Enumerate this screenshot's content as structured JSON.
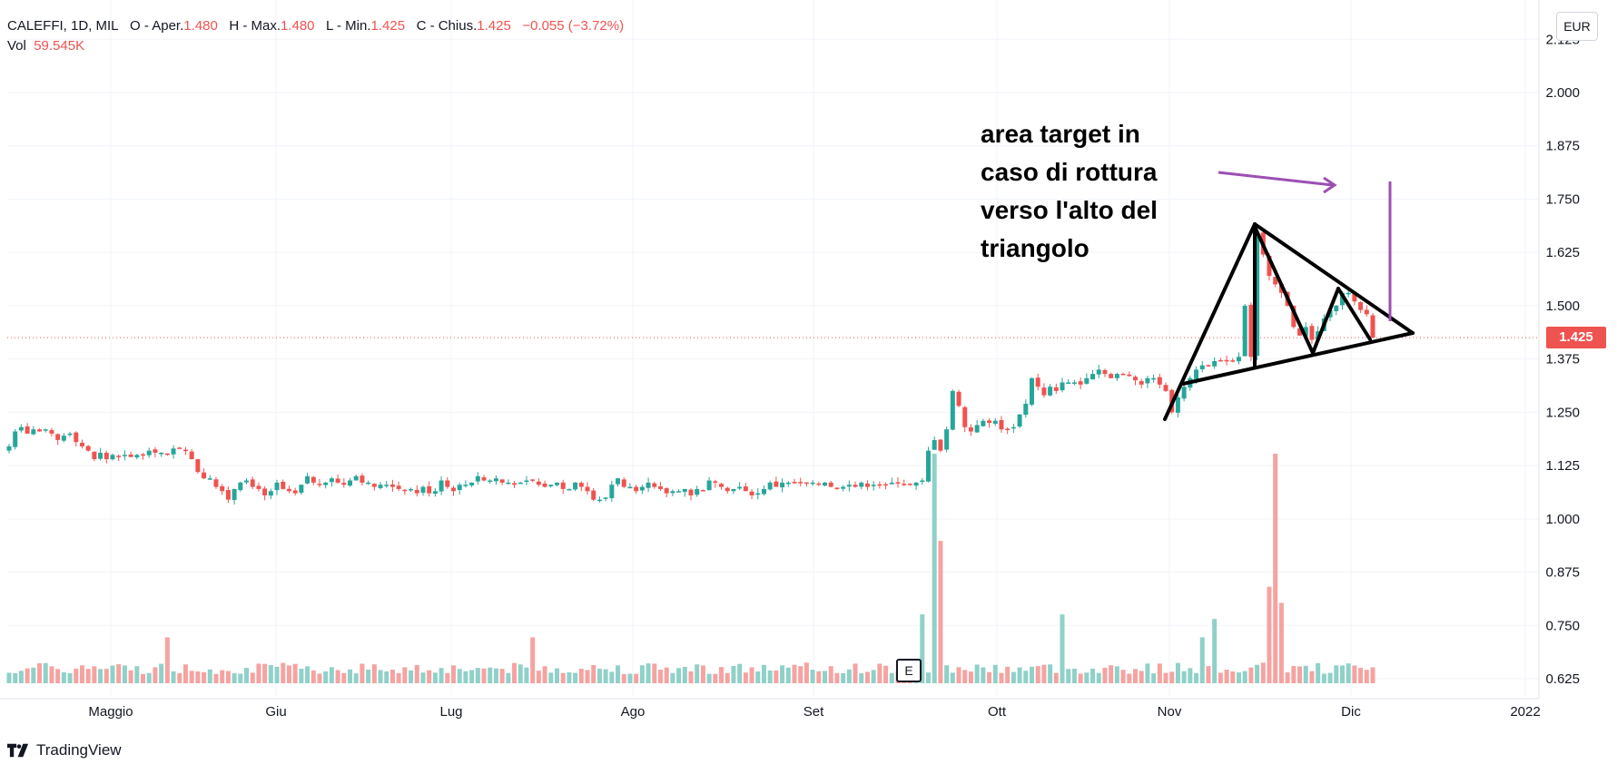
{
  "header": {
    "symbol": "CALEFFI, 1D, MIL",
    "o_label": "O - Aper.",
    "o_value": "1.480",
    "h_label": "H - Max.",
    "h_value": "1.480",
    "l_label": "L - Min.",
    "l_value": "1.425",
    "c_label": "C - Chius.",
    "c_value": "1.425",
    "change": "−0.055 (−3.72%)",
    "vol_label": "Vol",
    "vol_value": "59.545K"
  },
  "currency": "EUR",
  "last_price_label": "1.425",
  "earnings_marker": "E",
  "annotation": [
    "area target in",
    "caso di rottura",
    "verso l'alto del",
    "triangolo"
  ],
  "brand": "TradingView",
  "colors": {
    "up": "#26a69a",
    "down": "#ef5350",
    "vol_up": "#8fd1c8",
    "vol_down": "#f5a3a1",
    "grid": "#f0f3fa",
    "drawing": "#000000",
    "target": "#9c4fb3"
  },
  "chart_data": {
    "type": "candlestick",
    "title": "CALEFFI, 1D, MIL",
    "ylim": [
      0.6,
      2.125
    ],
    "y_ticks": [
      "0.625",
      "0.750",
      "0.875",
      "1.000",
      "1.125",
      "1.250",
      "1.375",
      "1.500",
      "1.625",
      "1.750",
      "1.875",
      "2.000",
      "2.125"
    ],
    "x_ticks": [
      "Maggio",
      "Giu",
      "Lug",
      "Ago",
      "Set",
      "Ott",
      "Nov",
      "Dic",
      "2022"
    ],
    "last_price": 1.425,
    "grid": true,
    "series_close": [
      1.17,
      1.205,
      1.215,
      1.2,
      1.21,
      1.205,
      1.21,
      1.2,
      1.185,
      1.195,
      1.2,
      1.18,
      1.17,
      1.16,
      1.14,
      1.155,
      1.14,
      1.15,
      1.145,
      1.15,
      1.145,
      1.15,
      1.15,
      1.16,
      1.155,
      1.155,
      1.15,
      1.165,
      1.165,
      1.16,
      1.14,
      1.11,
      1.095,
      1.095,
      1.075,
      1.065,
      1.045,
      1.07,
      1.085,
      1.09,
      1.075,
      1.07,
      1.055,
      1.065,
      1.085,
      1.07,
      1.065,
      1.06,
      1.08,
      1.1,
      1.085,
      1.08,
      1.085,
      1.095,
      1.085,
      1.08,
      1.09,
      1.1,
      1.085,
      1.085,
      1.075,
      1.08,
      1.08,
      1.075,
      1.07,
      1.065,
      1.07,
      1.06,
      1.075,
      1.06,
      1.065,
      1.09,
      1.075,
      1.065,
      1.08,
      1.08,
      1.085,
      1.1,
      1.09,
      1.09,
      1.095,
      1.085,
      1.085,
      1.08,
      1.085,
      1.09,
      1.09,
      1.08,
      1.075,
      1.08,
      1.085,
      1.07,
      1.07,
      1.085,
      1.075,
      1.065,
      1.045,
      1.045,
      1.05,
      1.08,
      1.095,
      1.075,
      1.075,
      1.065,
      1.075,
      1.085,
      1.075,
      1.07,
      1.06,
      1.065,
      1.065,
      1.07,
      1.055,
      1.07,
      1.065,
      1.09,
      1.085,
      1.075,
      1.065,
      1.07,
      1.075,
      1.065,
      1.055,
      1.06,
      1.07,
      1.085,
      1.075,
      1.085,
      1.085,
      1.085,
      1.085,
      1.085,
      1.085,
      1.08,
      1.085,
      1.075,
      1.07,
      1.075,
      1.08,
      1.075,
      1.085,
      1.075,
      1.08,
      1.08,
      1.08,
      1.085,
      1.085,
      1.08,
      1.08,
      1.085,
      1.09,
      1.16,
      1.185,
      1.16,
      1.21,
      1.3,
      1.265,
      1.215,
      1.205,
      1.22,
      1.23,
      1.225,
      1.23,
      1.21,
      1.21,
      1.215,
      1.245,
      1.27,
      1.33,
      1.31,
      1.29,
      1.31,
      1.3,
      1.32,
      1.32,
      1.32,
      1.315,
      1.33,
      1.34,
      1.35,
      1.34,
      1.33,
      1.34,
      1.34,
      1.335,
      1.325,
      1.315,
      1.33,
      1.33,
      1.315,
      1.3,
      1.25,
      1.285,
      1.31,
      1.33,
      1.35,
      1.36,
      1.36,
      1.37,
      1.37,
      1.37,
      1.37,
      1.38,
      1.5,
      1.38,
      1.67,
      1.62,
      1.57,
      1.55,
      1.53,
      1.5,
      1.45,
      1.43,
      1.45,
      1.42,
      1.44,
      1.47,
      1.49,
      1.5,
      1.53,
      1.53,
      1.51,
      1.49,
      1.48,
      1.425
    ],
    "volume_note": "relative volume bars at bottom (0–1 of max)"
  }
}
